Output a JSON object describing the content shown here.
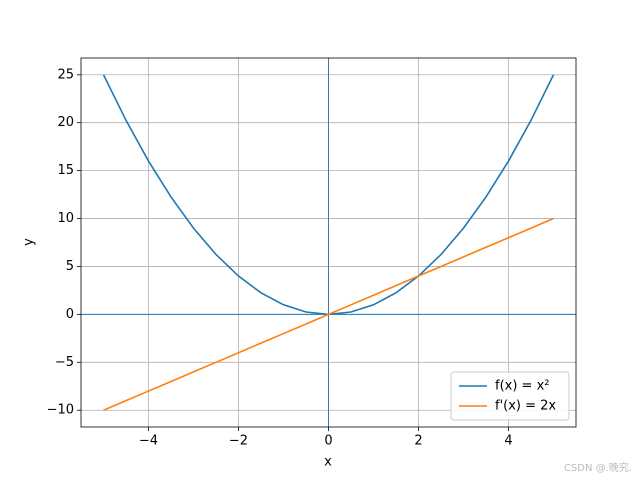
{
  "chart_data": {
    "type": "line",
    "xlabel": "x",
    "ylabel": "y",
    "x": [
      -5,
      -4.5,
      -4,
      -3.5,
      -3,
      -2.5,
      -2,
      -1.5,
      -1,
      -0.5,
      0,
      0.5,
      1,
      1.5,
      2,
      2.5,
      3,
      3.5,
      4,
      4.5,
      5
    ],
    "series": [
      {
        "name": "f(x) = x²",
        "color": "#1f77b4",
        "values": [
          25,
          20.25,
          16,
          12.25,
          9,
          6.25,
          4,
          2.25,
          1,
          0.25,
          0,
          0.25,
          1,
          2.25,
          4,
          6.25,
          9,
          12.25,
          16,
          20.25,
          25
        ]
      },
      {
        "name": "f'(x) = 2x",
        "color": "#ff7f0e",
        "values": [
          -10,
          -9,
          -8,
          -7,
          -6,
          -5,
          -4,
          -3,
          -2,
          -1,
          0,
          1,
          2,
          3,
          4,
          5,
          6,
          7,
          8,
          9,
          10
        ]
      }
    ],
    "xlim": [
      -5.5,
      5.5
    ],
    "ylim": [
      -11.75,
      26.75
    ],
    "xticks": [
      {
        "value": -4,
        "label": "−4"
      },
      {
        "value": -2,
        "label": "−2"
      },
      0,
      2,
      4
    ],
    "yticks": [
      {
        "value": -10,
        "label": "−10"
      },
      {
        "value": -5,
        "label": "−5"
      },
      0,
      5,
      10,
      15,
      20,
      25
    ],
    "grid": true,
    "zero_lines": true,
    "zero_line_color": "#1f77b4",
    "legend": "lower right",
    "watermark": "CSDN @.晚究."
  }
}
